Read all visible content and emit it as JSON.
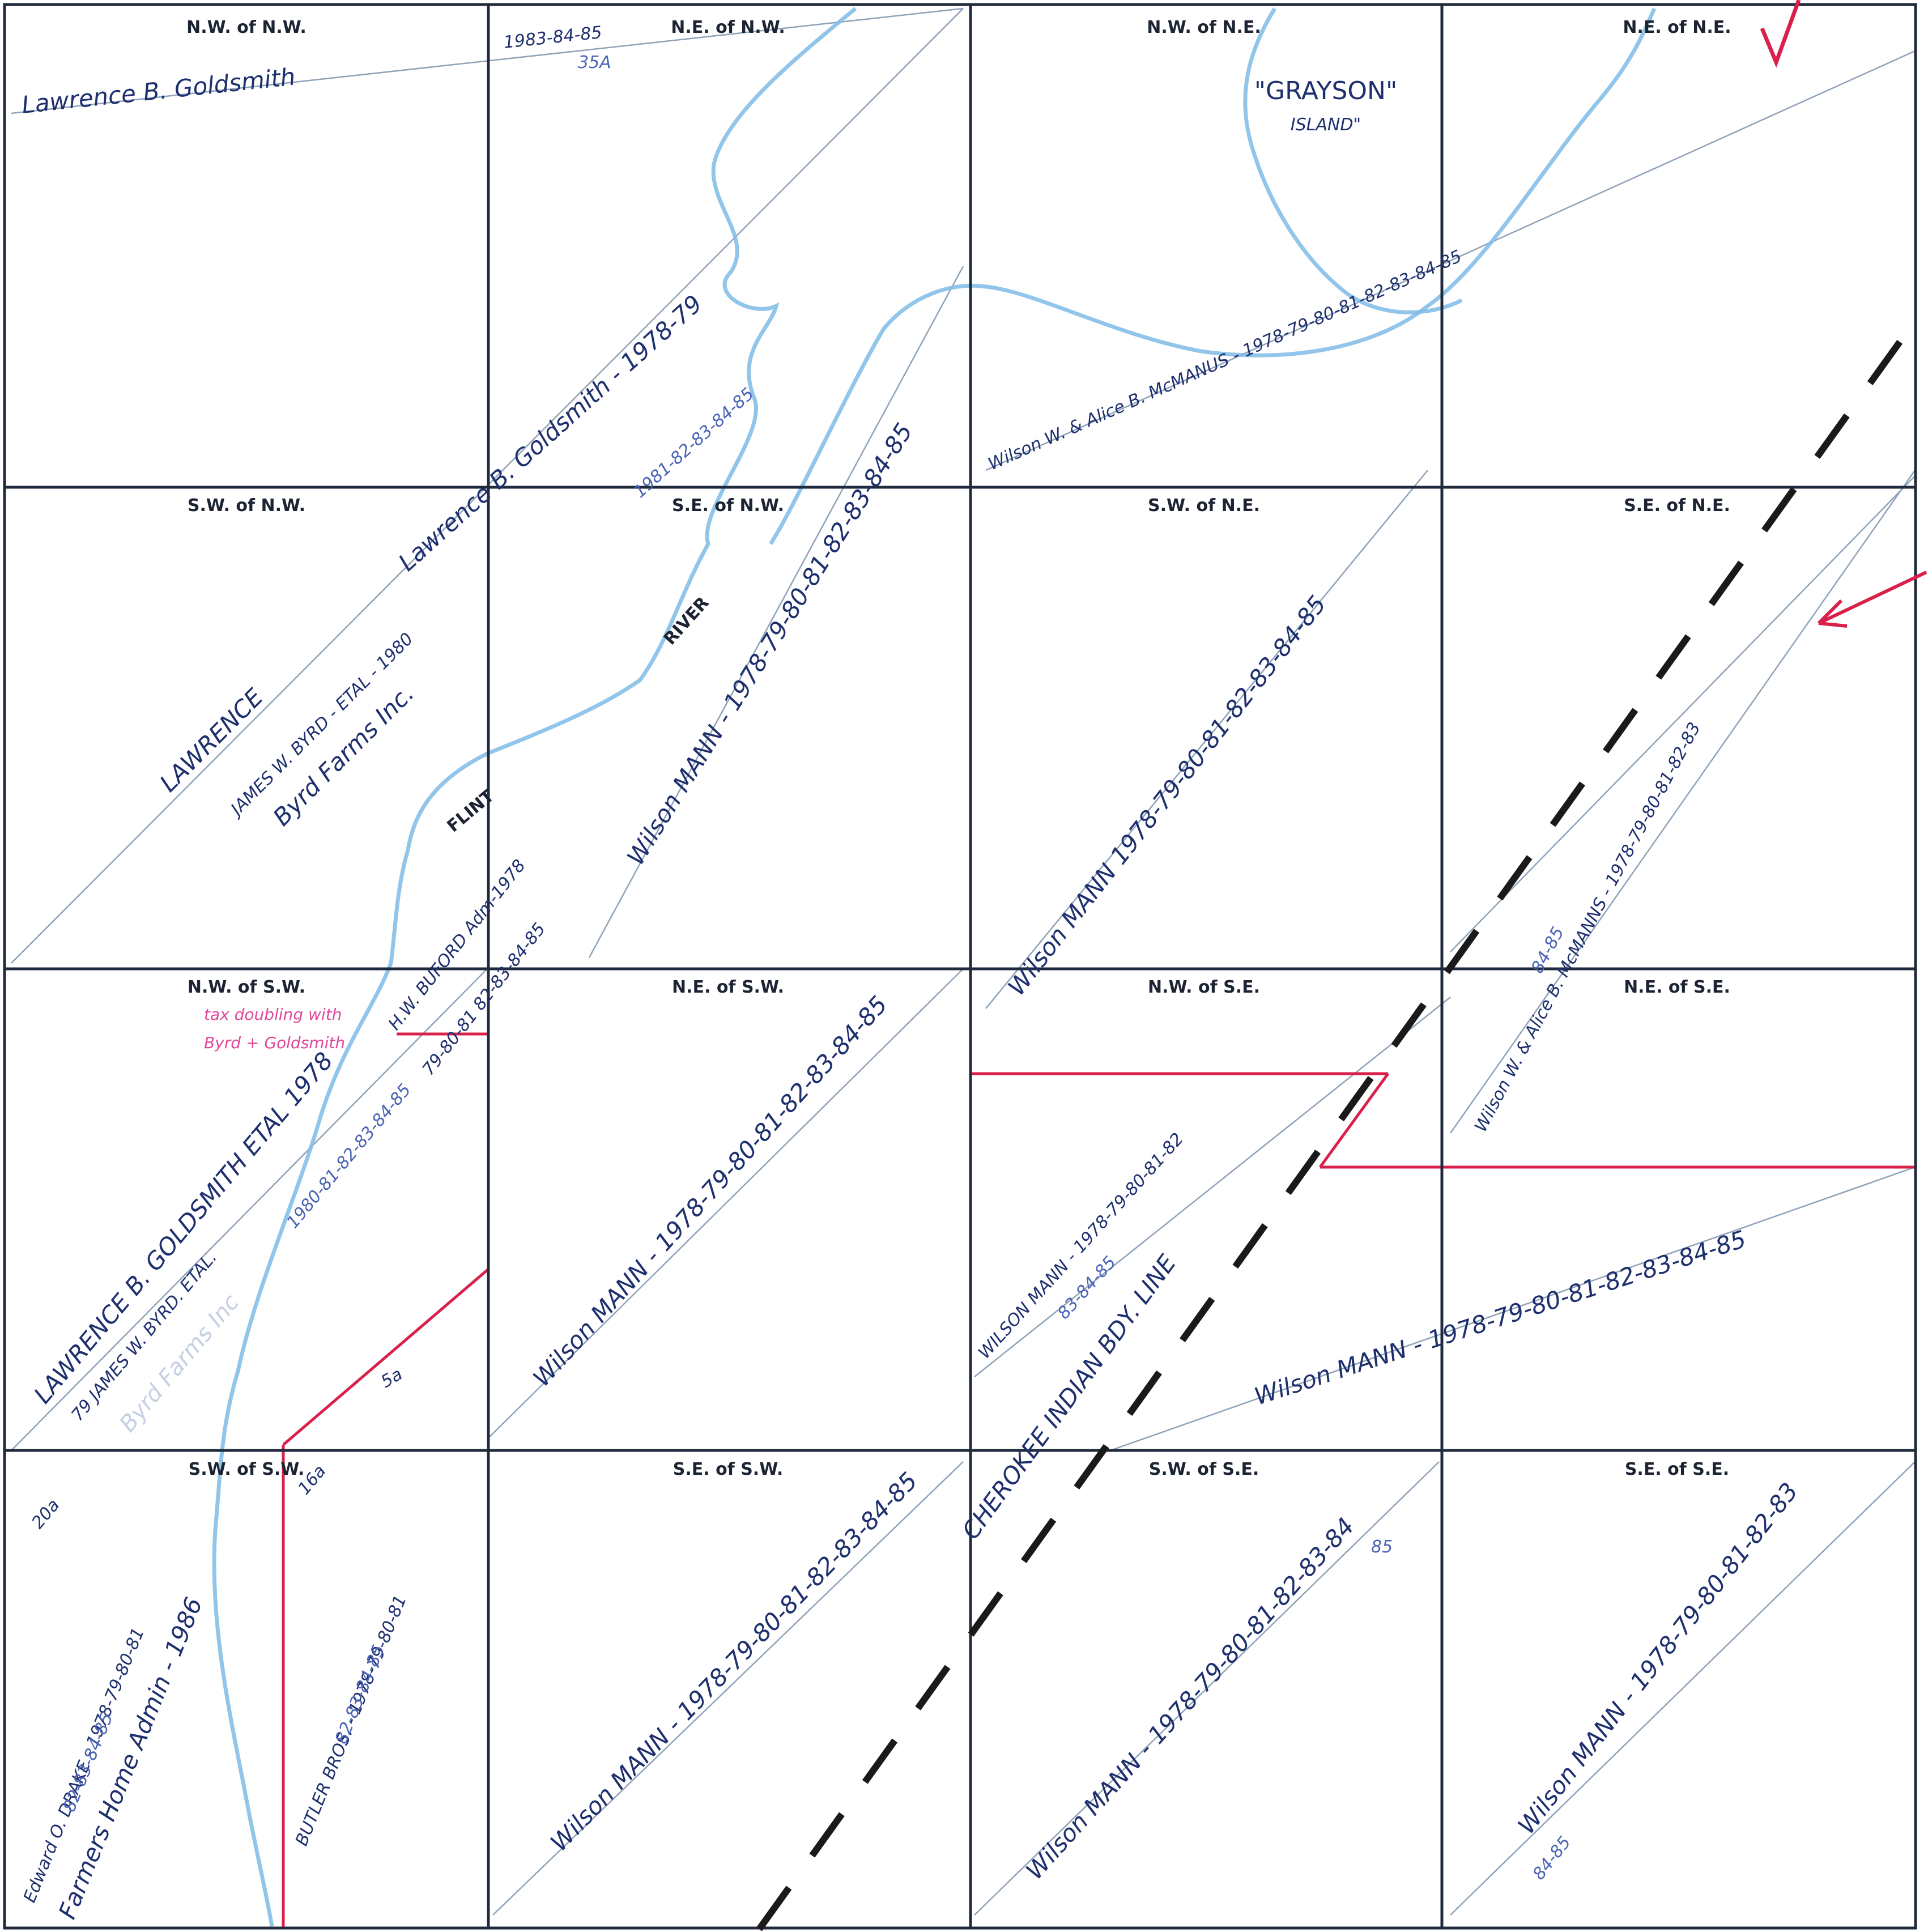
{
  "cells": [
    {
      "id": "nw-nw",
      "label": "N.W. of N.W."
    },
    {
      "id": "ne-nw",
      "label": "N.E. of N.W."
    },
    {
      "id": "nw-ne",
      "label": "N.W. of N.E."
    },
    {
      "id": "ne-ne",
      "label": "N.E. of N.E."
    },
    {
      "id": "sw-nw",
      "label": "S.W. of N.W."
    },
    {
      "id": "se-nw",
      "label": "S.E. of N.W."
    },
    {
      "id": "sw-ne",
      "label": "S.W. of N.E."
    },
    {
      "id": "se-ne",
      "label": "S.E. of N.E."
    },
    {
      "id": "nw-sw",
      "label": "N.W. of S.W."
    },
    {
      "id": "ne-sw",
      "label": "N.E. of S.W."
    },
    {
      "id": "nw-se",
      "label": "N.W. of S.E."
    },
    {
      "id": "ne-se",
      "label": "N.E. of S.E."
    },
    {
      "id": "sw-sw",
      "label": "S.W. of S.W."
    },
    {
      "id": "se-sw",
      "label": "S.E. of S.W."
    },
    {
      "id": "sw-se",
      "label": "S.W. of S.E."
    },
    {
      "id": "se-se",
      "label": "S.E. of S.E."
    }
  ],
  "owners": {
    "nw_nw": "Lawrence B. Goldsmith",
    "nw_nw_years": "1983-84-85",
    "nw_nw_sub": "35A",
    "nw_diag": "Lawrence B. Goldsmith - 1978-79",
    "nw_diag_years": "1981-82-83-84-85",
    "sw_nw_1": "LAWRENCE",
    "sw_nw_2": "JAMES W. BYRD - ETAL - 1980",
    "sw_nw_3": "Byrd Farms Inc.",
    "se_nw": "Wilson MANN - 1978-79-80-81-82-83-84-85",
    "ne_owner": "Wilson W. & Alice B. McMANUS - 1978-79-80-81-82-83-84-85",
    "island": "\"GRAYSON\"",
    "island_2": "ISLAND\"",
    "sw_ne": "Wilson MANN 1978-79-80-81-82-83-84-85",
    "se_ne": "Wilson W. & Alice B. McMANNS - 1978-79-80-81-82-83",
    "se_ne_sub": "84-85",
    "nw_sw_note_1": "tax doubling with",
    "nw_sw_note_2": "Byrd + Goldsmith",
    "nw_sw_buford": "H.W. BUFORD Adm-1978",
    "nw_sw_buford_years": "79-80-81 82-83-84-85",
    "nw_sw_1": "LAWRENCE B. GOLDSMITH ETAL 1978",
    "nw_sw_years": "1980-81-82-83-84-85",
    "nw_sw_2": "79 JAMES W. BYRD. ETAL.",
    "nw_sw_3": "Byrd Farms Inc",
    "ne_sw": "Wilson MANN - 1978-79-80-81-82-83-84-85",
    "nw_se": "WILSON MANN - 1978-79-80-81-82",
    "nw_se_sub": "83-84-85",
    "se_half": "Wilson MANN - 1978-79-80-81-82-83-84-85",
    "sw_sw_drake": "Edward O. DRAKE - 1978-79-80-81",
    "sw_sw_drake_years": "82-83-84-85",
    "sw_sw_fha": "Farmers Home Admin - 1986",
    "sw_sw_butler": "BUTLER BROS. - 1978-79-80-81",
    "sw_sw_butler_years": "82-83-84-85",
    "acre_20": "20a",
    "acre_16": "16a",
    "acre_5": "5a",
    "se_sw": "Wilson MANN - 1978-79-80-81-82-83-84-85",
    "sw_se": "Wilson MANN - 1978-79-80-81-82-83-84",
    "sw_se_sub": "85",
    "se_se": "Wilson MANN - 1978-79-80-81-82-83",
    "se_se_sub": "84-85"
  },
  "map_words": {
    "flint": "FLINT",
    "river": "RIVER",
    "boundary": "CHEROKEE INDIAN BDY. LINE"
  },
  "colors": {
    "grid": "#1f2b3d",
    "river": "#7fbbe6",
    "red_line": "#d8204a",
    "ink": "#1e2f6e"
  }
}
